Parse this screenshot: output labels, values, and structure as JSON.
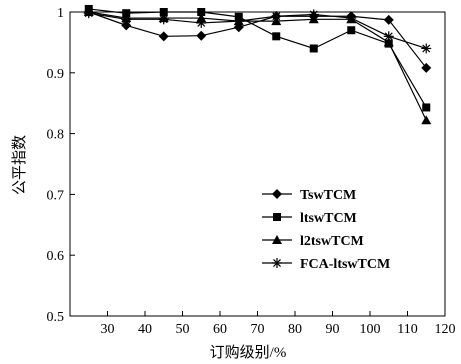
{
  "chart_data": {
    "type": "line",
    "xlabel": "订购级别/%",
    "ylabel": "公平指数",
    "xlim": [
      20,
      120
    ],
    "ylim": [
      0.5,
      1.0
    ],
    "x_ticks": [
      30,
      40,
      50,
      60,
      70,
      80,
      90,
      100,
      110,
      120
    ],
    "y_ticks": [
      0.5,
      0.6,
      0.7,
      0.8,
      0.9,
      1.0
    ],
    "x_tick_labels": [
      "30",
      "40",
      "50",
      "60",
      "70",
      "80",
      "90",
      "100",
      "110",
      "120"
    ],
    "y_tick_labels": [
      "0.5",
      "0.6",
      "0.7",
      "0.8",
      "0.9",
      "1"
    ],
    "grid": false,
    "legend_position": "bottom-right",
    "x": [
      25,
      35,
      45,
      55,
      65,
      75,
      85,
      95,
      105,
      115
    ],
    "series": [
      {
        "name": "TswTCM",
        "marker": "diamond",
        "values": [
          1.0,
          0.978,
          0.96,
          0.961,
          0.975,
          0.993,
          0.993,
          0.993,
          0.987,
          0.908
        ]
      },
      {
        "name": "ltswTCM",
        "marker": "square",
        "values": [
          1.005,
          0.998,
          1.0,
          1.0,
          0.992,
          0.96,
          0.94,
          0.97,
          0.948,
          0.843
        ]
      },
      {
        "name": "l2tswTCM",
        "marker": "triangle",
        "values": [
          1.0,
          0.99,
          0.99,
          0.99,
          0.985,
          0.985,
          0.988,
          0.988,
          0.95,
          0.822
        ]
      },
      {
        "name": "FCA-ltswTCM",
        "marker": "star",
        "values": [
          0.998,
          0.988,
          0.988,
          0.982,
          0.985,
          0.993,
          0.996,
          0.99,
          0.96,
          0.94
        ]
      }
    ]
  }
}
